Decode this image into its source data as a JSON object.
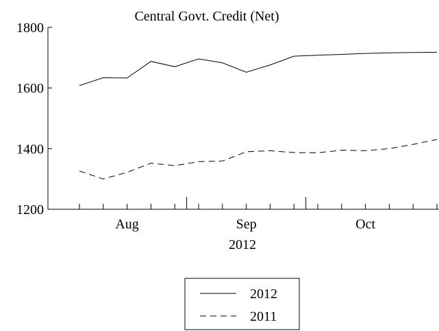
{
  "chart_data": {
    "type": "line",
    "title": "Central Govt. Credit (Net)",
    "xlabel": "2012",
    "ylabel": "",
    "ylim": [
      1200,
      1800
    ],
    "yticks": [
      1200,
      1400,
      1600,
      1800
    ],
    "x_tick_labels": [
      {
        "label": "Aug",
        "at": 2
      },
      {
        "label": "Sep",
        "at": 7
      },
      {
        "label": "Oct",
        "at": 12
      }
    ],
    "x": [
      0,
      1,
      2,
      3,
      4,
      5,
      6,
      7,
      8,
      9,
      10,
      11,
      12,
      13,
      14,
      15
    ],
    "series": [
      {
        "name": "2012",
        "dash": "solid",
        "values": [
          1608,
          1634,
          1633,
          1688,
          1670,
          1696,
          1683,
          1652,
          1676,
          1705,
          1708,
          1711,
          1714,
          1716,
          1717,
          1718
        ]
      },
      {
        "name": "2011",
        "dash": "dashed",
        "values": [
          1326,
          1300,
          1322,
          1352,
          1344,
          1357,
          1359,
          1390,
          1393,
          1387,
          1386,
          1395,
          1393,
          1400,
          1414,
          1430
        ]
      }
    ],
    "legend_position": "bottom-center",
    "grid": false
  }
}
